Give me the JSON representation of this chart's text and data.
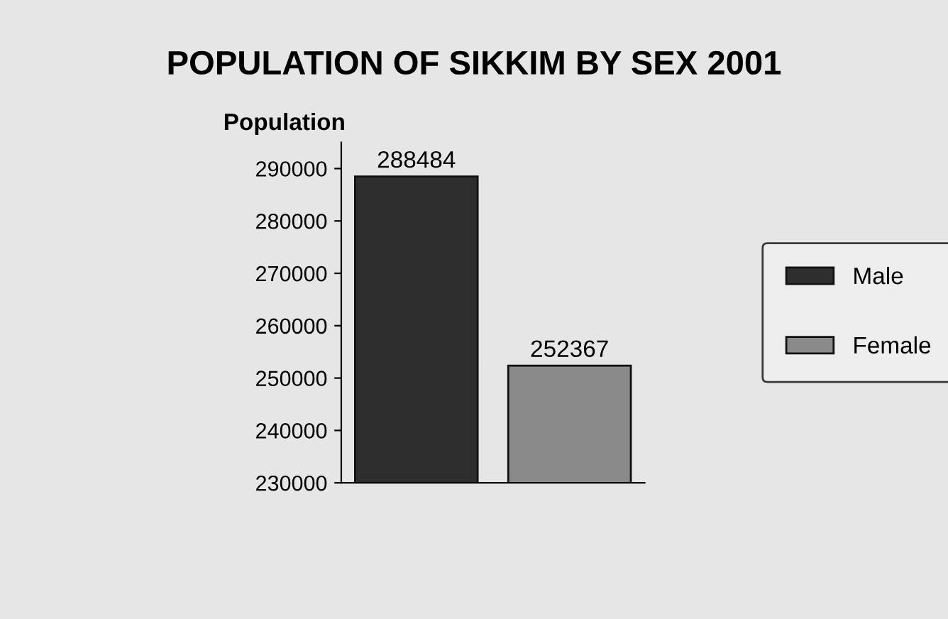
{
  "chart_data": {
    "type": "bar",
    "title": "POPULATION OF SIKKIM BY SEX 2001",
    "ylabel": "Population",
    "categories": [
      null,
      null
    ],
    "series": [
      {
        "name": "Male",
        "color": "#2e2e2e",
        "values": [
          288484,
          null
        ]
      },
      {
        "name": "Female",
        "color": "#8a8a8a",
        "values": [
          null,
          252367
        ]
      }
    ],
    "ylim": [
      230000,
      295000
    ],
    "yticks": [
      230000,
      240000,
      250000,
      260000,
      270000,
      280000,
      290000
    ],
    "data_labels": true,
    "legend": "right",
    "grid": false
  }
}
